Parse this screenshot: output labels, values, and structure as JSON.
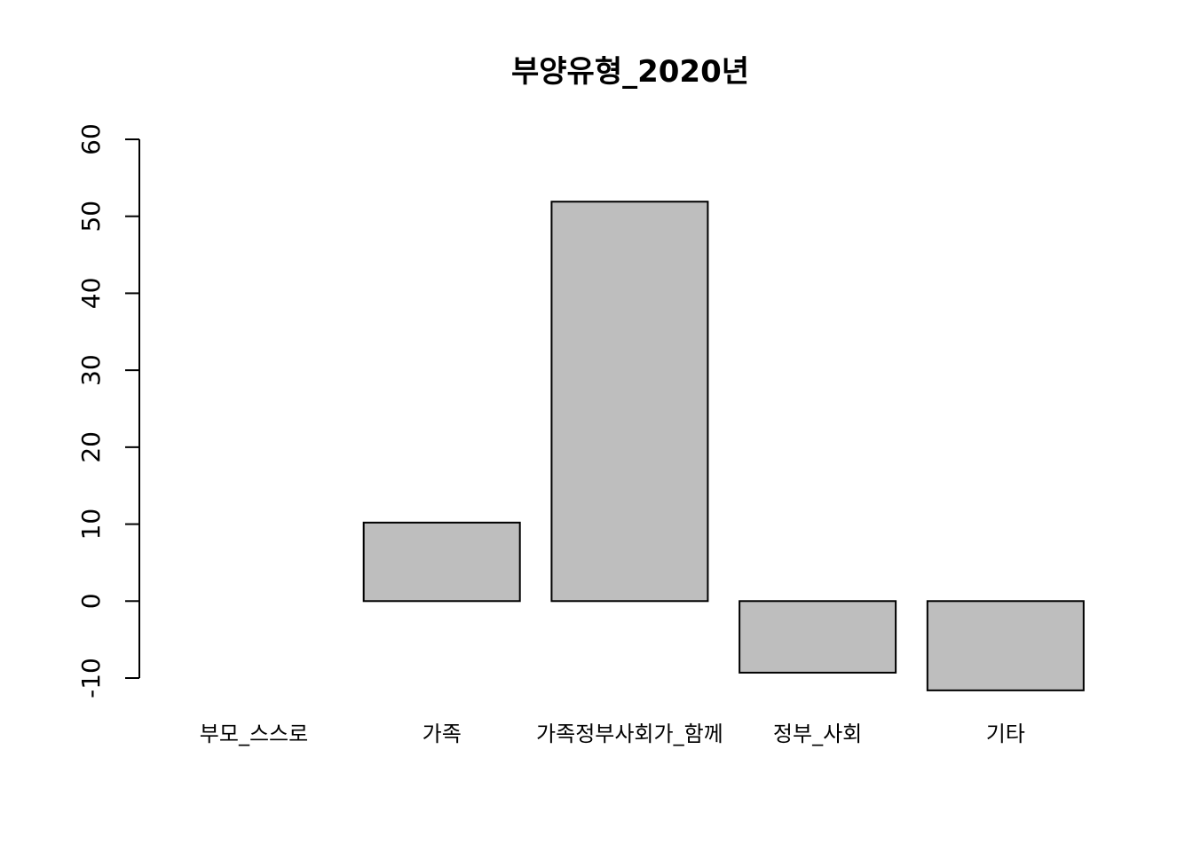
{
  "chart_data": {
    "type": "bar",
    "title": "부양유형_2020년",
    "xlabel": "",
    "ylabel": "",
    "categories": [
      "부모_스스로",
      "가족",
      "가족정부사회가_함께",
      "정부_사회",
      "기타"
    ],
    "values": [
      0,
      10.2,
      51.9,
      -9.3,
      -11.6
    ],
    "ylim": [
      -10,
      60
    ],
    "yticks": [
      -10,
      0,
      10,
      20,
      30,
      40,
      50,
      60
    ],
    "bar_fill": "#bebebe",
    "bar_stroke": "#000000",
    "grid": false,
    "legend": "none"
  }
}
